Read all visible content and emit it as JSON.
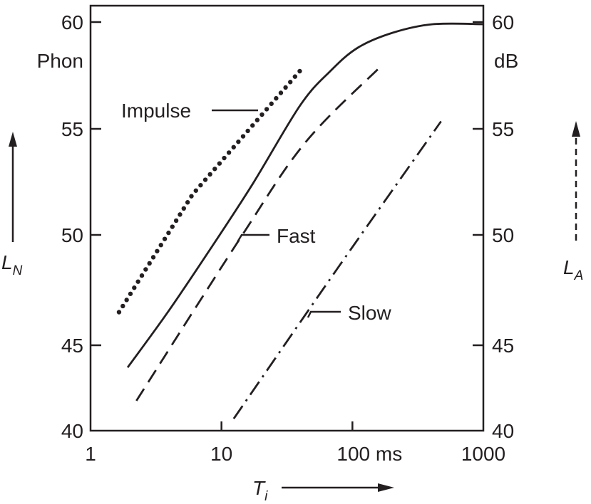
{
  "chart_data": {
    "type": "line",
    "x_scale": "log",
    "xlim": [
      1,
      1000
    ],
    "ylim": [
      40,
      60
    ],
    "x_ticks": [
      "1",
      "10",
      "100 ms",
      "1000"
    ],
    "x_tick_values": [
      1,
      10,
      100,
      1000
    ],
    "y_ticks_left": [
      "60",
      "55",
      "50",
      "45",
      "40"
    ],
    "y_ticks_right": [
      "60",
      "55",
      "50",
      "45",
      "40"
    ],
    "y_tick_values": [
      60,
      55,
      50,
      45,
      40
    ],
    "left_unit": "Phon",
    "right_unit": "dB",
    "xlabel": {
      "main": "T",
      "sub": "i"
    },
    "ylabel_left": {
      "main": "L",
      "sub": "N"
    },
    "ylabel_right": {
      "main": "L",
      "sub": "A"
    },
    "grid": false,
    "color": "#231f20",
    "series": [
      {
        "name": "Impulse",
        "style": "dotted",
        "x": [
          1.65,
          6.0,
          39.6
        ],
        "y": [
          46.5,
          51.9,
          57.7
        ]
      },
      {
        "name": "",
        "style": "solid",
        "x": [
          1.92,
          3.89,
          8.2,
          17.3,
          39.9,
          67.7,
          110,
          203,
          411,
          1000
        ],
        "y": [
          43.7,
          46.5,
          49.35,
          52.4,
          56.1,
          57.7,
          58.8,
          59.5,
          59.9,
          59.9
        ]
      },
      {
        "name": "Fast",
        "style": "dashed",
        "x": [
          2.24,
          13.9,
          43.6,
          163
        ],
        "y": [
          41.75,
          49.85,
          54.35,
          57.9
        ]
      },
      {
        "name": "Slow",
        "style": "dash-dot",
        "x": [
          12.4,
          77.3,
          475
        ],
        "y": [
          40.7,
          48.5,
          55.35
        ]
      }
    ]
  }
}
